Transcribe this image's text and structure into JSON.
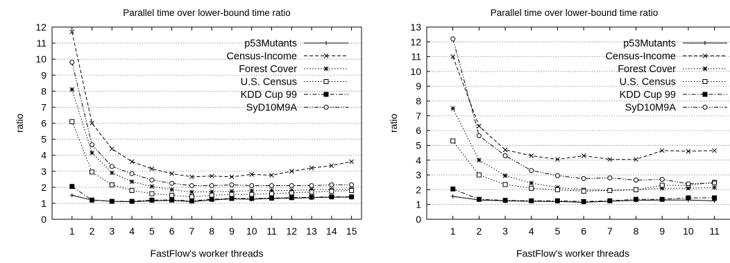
{
  "chart_data": [
    {
      "type": "line",
      "title": "Parallel time over lower-bound time ratio",
      "xlabel": "FastFlow's worker threads",
      "ylabel": "ratio",
      "x": [
        1,
        2,
        3,
        4,
        5,
        6,
        7,
        8,
        9,
        10,
        11,
        12,
        13,
        14,
        15
      ],
      "xlim": [
        0,
        15.5
      ],
      "ylim": [
        0,
        12
      ],
      "yticks": [
        0,
        1,
        2,
        3,
        4,
        5,
        6,
        7,
        8,
        9,
        10,
        11,
        12
      ],
      "grid": true,
      "legend_position": "top-right",
      "series": [
        {
          "name": "p53Mutants",
          "marker": "plus",
          "dash": "solid",
          "values": [
            1.5,
            1.2,
            1.12,
            1.1,
            1.15,
            1.18,
            1.1,
            1.2,
            1.28,
            1.25,
            1.3,
            1.32,
            1.35,
            1.38,
            1.38
          ]
        },
        {
          "name": "Census-Income",
          "marker": "x",
          "dash": "dashed",
          "values": [
            11.7,
            6.0,
            4.4,
            3.6,
            3.15,
            2.85,
            2.65,
            2.7,
            2.65,
            2.8,
            2.75,
            3.0,
            3.2,
            3.35,
            3.6
          ]
        },
        {
          "name": "Forest Cover",
          "marker": "star",
          "dash": "dotted",
          "values": [
            8.1,
            4.15,
            2.9,
            2.35,
            2.05,
            1.85,
            1.7,
            1.72,
            1.75,
            1.78,
            1.8,
            1.8,
            1.85,
            1.85,
            1.88
          ]
        },
        {
          "name": "U.S. Census",
          "marker": "square-open",
          "dash": "dotted",
          "values": [
            6.1,
            2.95,
            2.15,
            1.8,
            1.6,
            1.5,
            1.4,
            1.5,
            1.55,
            1.55,
            1.6,
            1.65,
            1.7,
            1.75,
            1.8
          ]
        },
        {
          "name": "KDD Cup 99",
          "marker": "square-filled",
          "dash": "dashdot",
          "values": [
            2.05,
            1.2,
            1.12,
            1.12,
            1.2,
            1.2,
            1.15,
            1.25,
            1.3,
            1.3,
            1.32,
            1.35,
            1.38,
            1.4,
            1.4
          ]
        },
        {
          "name": "SyD10M9A",
          "marker": "circle-open",
          "dash": "dashdotdot",
          "values": [
            9.8,
            4.65,
            3.3,
            2.85,
            2.45,
            2.25,
            2.1,
            2.1,
            2.15,
            2.1,
            2.1,
            2.1,
            2.1,
            2.15,
            2.15
          ]
        }
      ]
    },
    {
      "type": "line",
      "title": "Parallel time over lower-bound time ratio",
      "xlabel": "FastFlow's worker threads",
      "ylabel": "ratio",
      "x": [
        1,
        2,
        3,
        4,
        5,
        6,
        7,
        8,
        9,
        10,
        11
      ],
      "xlim": [
        0,
        11.7
      ],
      "ylim": [
        0,
        13
      ],
      "yticks": [
        0,
        1,
        2,
        3,
        4,
        5,
        6,
        7,
        8,
        9,
        10,
        11,
        12,
        13
      ],
      "grid": true,
      "legend_position": "top-right",
      "series": [
        {
          "name": "p53Mutants",
          "marker": "plus",
          "dash": "solid",
          "values": [
            1.55,
            1.3,
            1.25,
            1.22,
            1.2,
            1.15,
            1.22,
            1.28,
            1.3,
            1.3,
            1.25
          ]
        },
        {
          "name": "Census-Income",
          "marker": "x",
          "dash": "dashed",
          "values": [
            11.0,
            6.3,
            4.7,
            4.3,
            4.05,
            4.3,
            4.05,
            4.05,
            4.65,
            4.6,
            4.65
          ]
        },
        {
          "name": "Forest Cover",
          "marker": "star",
          "dash": "dotted",
          "values": [
            7.5,
            4.0,
            2.95,
            2.45,
            2.15,
            2.0,
            1.95,
            2.0,
            2.1,
            2.1,
            2.15
          ]
        },
        {
          "name": "U.S. Census",
          "marker": "square-open",
          "dash": "dotted",
          "values": [
            5.3,
            3.0,
            2.35,
            2.1,
            2.0,
            1.9,
            1.95,
            2.0,
            2.3,
            2.3,
            2.5
          ]
        },
        {
          "name": "KDD Cup 99",
          "marker": "square-filled",
          "dash": "dashdot",
          "values": [
            2.05,
            1.35,
            1.28,
            1.25,
            1.25,
            1.2,
            1.25,
            1.35,
            1.35,
            1.45,
            1.45
          ]
        },
        {
          "name": "SyD10M9A",
          "marker": "circle-open",
          "dash": "dashdotdot",
          "values": [
            12.2,
            5.65,
            4.3,
            3.3,
            2.95,
            2.75,
            2.8,
            2.65,
            2.7,
            2.4,
            2.45
          ]
        }
      ]
    }
  ]
}
